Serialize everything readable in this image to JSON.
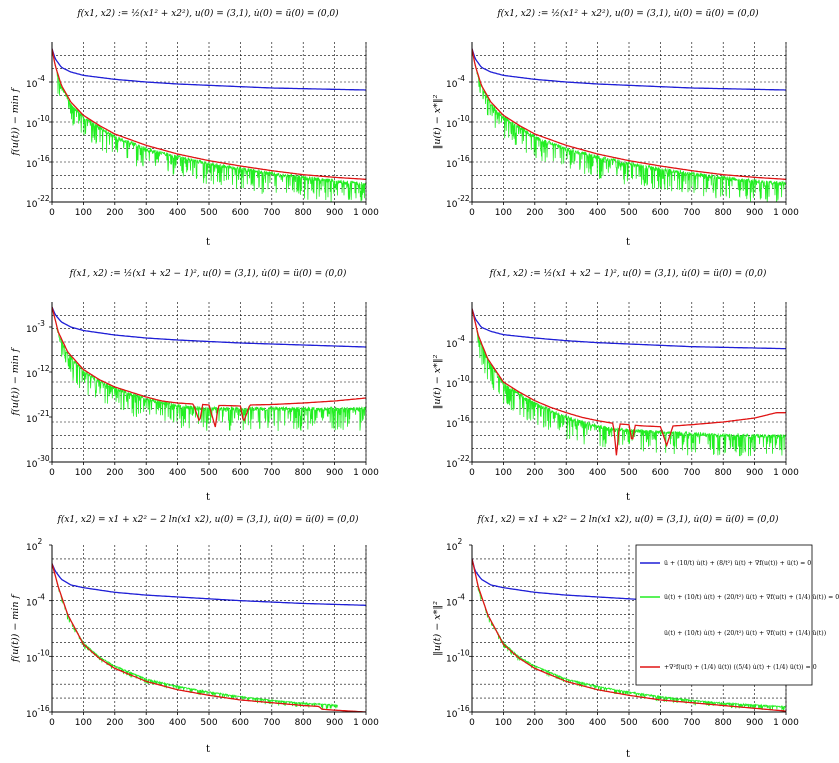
{
  "figure_title": "Six convergence plots",
  "colors": {
    "blue": "#1f1fd6",
    "green": "#22ee22",
    "red": "#e01515",
    "grid": "#000000"
  },
  "legend": {
    "panel": 5,
    "entries": [
      {
        "color": "blue",
        "label": "ü + (10/t) u̇(t) + (8/t²) ü(t) + ∇f(u(t)) + ü(t) = 0"
      },
      {
        "color": "green",
        "label": "ü(t) + (10/t) u̇(t) + (20/t²) ü(t) + ∇f(u(t) + (1/4) ü(t)) = 0"
      },
      {
        "color": "none",
        "label": "ü(t) + (10/t) u̇(t) + (20/t²) ü(t) + ∇f(u(t) + (1/4) ü(t))"
      },
      {
        "color": "red",
        "label": "+∇²f(u(t) + (1/4) ü(t)) ((5/4) u̇(t) + (1/4) ü(t)) = 0"
      }
    ]
  },
  "chart_data": [
    {
      "type": "line",
      "title": "f(x1, x2) := ½(x1² + x2²), u(0) = (3,1), u̇(0) = ü(0) = (0,0)",
      "xlabel": "t",
      "ylabel": "f(u(t)) − min f",
      "xlim": [
        0,
        1000
      ],
      "ylim_exp": [
        -22,
        2
      ],
      "x_ticks": [
        "0",
        "100",
        "200",
        "300",
        "400",
        "500",
        "600",
        "700",
        "800",
        "900",
        "1 000"
      ],
      "y_ticks": [
        {
          "exp": -4,
          "label": "-4"
        },
        {
          "exp": -10,
          "label": "-10"
        },
        {
          "exp": -16,
          "label": "-16"
        },
        {
          "exp": -22,
          "label": "-22"
        }
      ],
      "series": [
        {
          "name": "blue",
          "color": "blue",
          "noise": 0,
          "x": [
            0,
            10,
            30,
            60,
            100,
            200,
            300,
            400,
            500,
            600,
            700,
            800,
            900,
            1000
          ],
          "y": [
            1,
            -0.5,
            -1.8,
            -2.5,
            -3,
            -3.6,
            -4,
            -4.3,
            -4.5,
            -4.7,
            -4.9,
            -5,
            -5.1,
            -5.2
          ]
        },
        {
          "name": "green",
          "color": "green",
          "noise": 2.2,
          "x": [
            0,
            10,
            30,
            60,
            100,
            150,
            200,
            300,
            400,
            500,
            600,
            700,
            800,
            900,
            1000
          ],
          "y": [
            1,
            -1.5,
            -4.5,
            -7,
            -9,
            -10.5,
            -12,
            -13.8,
            -15,
            -16,
            -16.8,
            -17.5,
            -18.1,
            -18.6,
            -19
          ]
        },
        {
          "name": "red",
          "color": "red",
          "noise": 0,
          "x": [
            0,
            10,
            30,
            60,
            100,
            150,
            200,
            300,
            400,
            500,
            600,
            700,
            800,
            900,
            1000
          ],
          "y": [
            1,
            -1.5,
            -4.5,
            -7,
            -9,
            -10.5,
            -11.8,
            -13.5,
            -14.8,
            -15.8,
            -16.6,
            -17.3,
            -17.9,
            -18.3,
            -18.6
          ]
        }
      ]
    },
    {
      "type": "line",
      "title": "f(x1, x2) := ½(x1² + x2²), u(0) = (3,1), u̇(0) = ü(0) = (0,0)",
      "xlabel": "t",
      "ylabel": "‖u(t) − x*‖²",
      "xlim": [
        0,
        1000
      ],
      "ylim_exp": [
        -22,
        2
      ],
      "x_ticks": [
        "0",
        "100",
        "200",
        "300",
        "400",
        "500",
        "600",
        "700",
        "800",
        "900",
        "1 000"
      ],
      "y_ticks": [
        {
          "exp": -4,
          "label": "-4"
        },
        {
          "exp": -10,
          "label": "-10"
        },
        {
          "exp": -16,
          "label": "-16"
        },
        {
          "exp": -22,
          "label": "-22"
        }
      ],
      "series": [
        {
          "name": "blue",
          "color": "blue",
          "noise": 0,
          "x": [
            0,
            10,
            30,
            60,
            100,
            200,
            300,
            400,
            500,
            600,
            700,
            800,
            900,
            1000
          ],
          "y": [
            1,
            -0.5,
            -1.8,
            -2.5,
            -3,
            -3.6,
            -4,
            -4.3,
            -4.5,
            -4.7,
            -4.9,
            -5,
            -5.1,
            -5.2
          ]
        },
        {
          "name": "green",
          "color": "green",
          "noise": 2.2,
          "x": [
            0,
            10,
            30,
            60,
            100,
            150,
            200,
            300,
            400,
            500,
            600,
            700,
            800,
            900,
            1000
          ],
          "y": [
            1,
            -1.5,
            -4.5,
            -7,
            -9,
            -10.5,
            -12,
            -13.8,
            -15,
            -16,
            -16.8,
            -17.5,
            -18.1,
            -18.6,
            -19
          ]
        },
        {
          "name": "red",
          "color": "red",
          "noise": 0,
          "x": [
            0,
            10,
            30,
            60,
            100,
            150,
            200,
            300,
            400,
            500,
            600,
            700,
            800,
            900,
            1000
          ],
          "y": [
            1,
            -1.5,
            -4.5,
            -7,
            -9,
            -10.5,
            -11.8,
            -13.5,
            -14.8,
            -15.8,
            -16.6,
            -17.3,
            -17.9,
            -18.3,
            -18.6
          ]
        }
      ]
    },
    {
      "type": "line",
      "title": "f(x1, x2) := ½(x1 + x2 − 1)², u(0) = (3,1), u̇(0) = ü(0) = (0,0)",
      "xlabel": "t",
      "ylabel": "f(u(t)) − min f",
      "xlim": [
        0,
        1000
      ],
      "ylim_exp": [
        -30,
        2
      ],
      "x_ticks": [
        "0",
        "100",
        "200",
        "300",
        "400",
        "500",
        "600",
        "700",
        "800",
        "900",
        "1 000"
      ],
      "y_ticks": [
        {
          "exp": -3,
          "label": "-3"
        },
        {
          "exp": -12,
          "label": "-12"
        },
        {
          "exp": -21,
          "label": "-21"
        },
        {
          "exp": -30,
          "label": "-30"
        }
      ],
      "series": [
        {
          "name": "blue",
          "color": "blue",
          "noise": 0,
          "x": [
            0,
            10,
            30,
            60,
            100,
            200,
            300,
            400,
            500,
            600,
            700,
            800,
            900,
            1000
          ],
          "y": [
            1,
            -0.5,
            -2,
            -3,
            -3.7,
            -4.6,
            -5.2,
            -5.6,
            -5.9,
            -6.2,
            -6.4,
            -6.6,
            -6.8,
            -7
          ]
        },
        {
          "name": "green",
          "color": "green",
          "noise": 3,
          "x": [
            0,
            20,
            50,
            100,
            150,
            200,
            250,
            300,
            350,
            400,
            450,
            500,
            600,
            700,
            800,
            900,
            1000
          ],
          "y": [
            1,
            -4,
            -8,
            -11.5,
            -13.5,
            -15,
            -16,
            -17,
            -17.8,
            -18.3,
            -18.8,
            -19,
            -19,
            -19,
            -19,
            -19,
            -19
          ]
        },
        {
          "name": "red",
          "color": "red",
          "noise": 0,
          "x": [
            0,
            20,
            50,
            100,
            150,
            200,
            250,
            300,
            350,
            400,
            450,
            470,
            480,
            500,
            520,
            530,
            550,
            600,
            610,
            630,
            700,
            800,
            900,
            1000
          ],
          "y": [
            1,
            -4,
            -8,
            -11.5,
            -13.5,
            -15,
            -16,
            -17,
            -17.8,
            -18.2,
            -18.4,
            -22,
            -18.5,
            -18.6,
            -23,
            -18.7,
            -18.7,
            -18.8,
            -22,
            -18.6,
            -18.5,
            -18.2,
            -17.8,
            -17.2
          ]
        }
      ]
    },
    {
      "type": "line",
      "title": "f(x1, x2) := ½(x1 + x2 − 1)², u(0) = (3,1), u̇(0) = ü(0) = (0,0)",
      "xlabel": "t",
      "ylabel": "‖u(t) − x*‖²",
      "xlim": [
        0,
        1000
      ],
      "ylim_exp": [
        -22,
        2
      ],
      "x_ticks": [
        "0",
        "100",
        "200",
        "300",
        "400",
        "500",
        "600",
        "700",
        "800",
        "900",
        "1 000"
      ],
      "y_ticks": [
        {
          "exp": -4,
          "label": "-4"
        },
        {
          "exp": -10,
          "label": "-10"
        },
        {
          "exp": -16,
          "label": "-16"
        },
        {
          "exp": -22,
          "label": "-22"
        }
      ],
      "series": [
        {
          "name": "blue",
          "color": "blue",
          "noise": 0,
          "x": [
            0,
            10,
            30,
            60,
            100,
            200,
            300,
            400,
            500,
            600,
            700,
            800,
            900,
            1000
          ],
          "y": [
            1,
            -0.5,
            -1.8,
            -2.4,
            -2.9,
            -3.4,
            -3.8,
            -4.1,
            -4.3,
            -4.5,
            -4.7,
            -4.8,
            -4.9,
            -5
          ]
        },
        {
          "name": "green",
          "color": "green",
          "noise": 2.2,
          "x": [
            0,
            20,
            50,
            100,
            150,
            200,
            250,
            300,
            350,
            400,
            450,
            500,
            600,
            700,
            800,
            900,
            1000
          ],
          "y": [
            1,
            -3,
            -6.5,
            -10,
            -11.5,
            -13,
            -14,
            -15,
            -15.8,
            -16.4,
            -16.8,
            -17,
            -17.3,
            -17.5,
            -17.7,
            -17.8,
            -17.9
          ]
        },
        {
          "name": "red",
          "color": "red",
          "noise": 0,
          "x": [
            0,
            20,
            50,
            100,
            150,
            200,
            250,
            300,
            350,
            400,
            450,
            460,
            470,
            500,
            510,
            520,
            550,
            600,
            620,
            640,
            700,
            800,
            900,
            970,
            1000
          ],
          "y": [
            1,
            -3,
            -6.5,
            -10,
            -11.5,
            -12.8,
            -13.8,
            -14.6,
            -15.3,
            -15.8,
            -16.2,
            -21,
            -16.3,
            -16.4,
            -19,
            -16.5,
            -16.6,
            -16.7,
            -19.5,
            -16.6,
            -16.4,
            -16,
            -15.4,
            -14.6,
            -14.6
          ]
        }
      ]
    },
    {
      "type": "line",
      "title": "f(x1, x2) = x1 + x2² − 2 ln(x1 x2), u(0) = (3,1), u̇(0) = ü(0) = (0,0)",
      "xlabel": "t",
      "ylabel": "f(u(t)) − min f",
      "xlim": [
        0,
        1000
      ],
      "ylim_exp": [
        -16,
        2
      ],
      "x_ticks": [
        "0",
        "100",
        "200",
        "300",
        "400",
        "500",
        "600",
        "700",
        "800",
        "900",
        "1 000"
      ],
      "y_ticks": [
        {
          "exp": 2,
          "label": "2"
        },
        {
          "exp": -4,
          "label": "-4"
        },
        {
          "exp": -10,
          "label": "-10"
        },
        {
          "exp": -16,
          "label": "-16"
        }
      ],
      "series": [
        {
          "name": "blue",
          "color": "blue",
          "noise": 0,
          "x": [
            0,
            10,
            30,
            60,
            100,
            200,
            300,
            400,
            500,
            600,
            700,
            800,
            900,
            1000
          ],
          "y": [
            0,
            -0.8,
            -1.7,
            -2.3,
            -2.6,
            -3.1,
            -3.4,
            -3.6,
            -3.8,
            -4,
            -4.15,
            -4.3,
            -4.4,
            -4.5
          ]
        },
        {
          "name": "green",
          "color": "green",
          "noise": 0.35,
          "x": [
            0,
            20,
            50,
            100,
            150,
            200,
            300,
            400,
            500,
            600,
            700,
            800,
            900,
            910
          ],
          "y": [
            0,
            -2.5,
            -5.5,
            -8.5,
            -10,
            -11,
            -12.4,
            -13.2,
            -13.8,
            -14.3,
            -14.7,
            -15,
            -15.2,
            -15.2
          ]
        },
        {
          "name": "red",
          "color": "red",
          "noise": 0,
          "x": [
            0,
            20,
            50,
            100,
            150,
            200,
            300,
            400,
            500,
            600,
            700,
            800,
            850,
            860,
            900,
            950,
            1000
          ],
          "y": [
            0,
            -2.5,
            -5.5,
            -8.7,
            -10.2,
            -11.3,
            -12.7,
            -13.6,
            -14.2,
            -14.7,
            -15,
            -15.3,
            -15.4,
            -15.7,
            -15.8,
            -15.9,
            -16
          ]
        }
      ]
    },
    {
      "type": "line",
      "title": "f(x1, x2) = x1 + x2² − 2 ln(x1 x2), u(0) = (3,1), u̇(0) = ü(0) = (0,0)",
      "xlabel": "t",
      "ylabel": "‖u(t) − x*‖²",
      "xlim": [
        0,
        1000
      ],
      "ylim_exp": [
        -16,
        2
      ],
      "x_ticks": [
        "0",
        "100",
        "200",
        "300",
        "400",
        "500",
        "600",
        "700",
        "800",
        "900",
        "1 000"
      ],
      "y_ticks": [
        {
          "exp": 2,
          "label": "2"
        },
        {
          "exp": -4,
          "label": "-4"
        },
        {
          "exp": -10,
          "label": "-10"
        },
        {
          "exp": -16,
          "label": "-16"
        }
      ],
      "series": [
        {
          "name": "blue",
          "color": "blue",
          "noise": 0,
          "x": [
            0,
            10,
            30,
            60,
            100,
            200,
            300,
            400,
            500,
            600,
            700,
            800,
            900,
            1000
          ],
          "y": [
            0.5,
            -0.8,
            -1.7,
            -2.3,
            -2.6,
            -3.1,
            -3.4,
            -3.6,
            -3.8,
            -4,
            -4.15,
            -4.3,
            -4.4,
            -4.5
          ]
        },
        {
          "name": "green",
          "color": "green",
          "noise": 0.35,
          "x": [
            0,
            20,
            50,
            100,
            150,
            200,
            300,
            400,
            500,
            600,
            700,
            800,
            900,
            1000
          ],
          "y": [
            0.5,
            -2.5,
            -5.5,
            -8.5,
            -10,
            -11,
            -12.4,
            -13.2,
            -13.8,
            -14.3,
            -14.7,
            -15,
            -15.2,
            -15.4
          ]
        },
        {
          "name": "red",
          "color": "red",
          "noise": 0,
          "x": [
            0,
            20,
            50,
            100,
            150,
            200,
            300,
            400,
            500,
            600,
            700,
            800,
            900,
            1000
          ],
          "y": [
            0.5,
            -2.5,
            -5.5,
            -8.7,
            -10.2,
            -11.3,
            -12.7,
            -13.6,
            -14.2,
            -14.7,
            -15,
            -15.3,
            -15.6,
            -15.9
          ]
        }
      ]
    }
  ]
}
